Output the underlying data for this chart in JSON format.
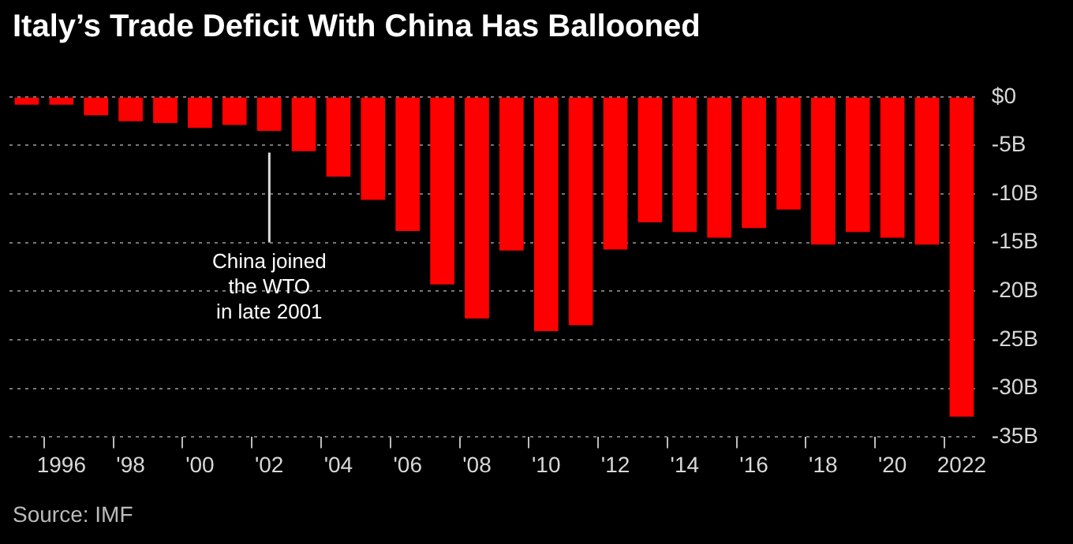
{
  "chart_data": {
    "type": "bar",
    "title": "Italy’s Trade Deficit With China Has Ballooned",
    "categories": [
      null,
      "1996",
      null,
      "'98",
      null,
      "'00",
      null,
      "'02",
      null,
      "'04",
      null,
      "'06",
      null,
      "'08",
      null,
      "'10",
      null,
      "'12",
      null,
      "'14",
      null,
      "'16",
      null,
      "'18",
      null,
      "'20",
      null,
      "2022"
    ],
    "values": [
      -0.8,
      -0.8,
      -1.9,
      -2.5,
      -2.7,
      -3.2,
      -2.9,
      -3.5,
      -5.6,
      -8.2,
      -10.6,
      -13.8,
      -19.3,
      -22.8,
      -15.8,
      -24.1,
      -23.5,
      -15.7,
      -12.9,
      -13.9,
      -14.5,
      -13.5,
      -11.6,
      -15.2,
      -13.9,
      -14.5,
      -15.2,
      -32.9
    ],
    "color": "#ff0000",
    "ylim": [
      -35,
      0
    ],
    "yticks": [
      {
        "value": 0,
        "label": "$0"
      },
      {
        "value": -5,
        "label": "-5B"
      },
      {
        "value": -10,
        "label": "-10B"
      },
      {
        "value": -15,
        "label": "-15B"
      },
      {
        "value": -20,
        "label": "-20B"
      },
      {
        "value": -25,
        "label": "-25B"
      },
      {
        "value": -30,
        "label": "-30B"
      },
      {
        "value": -35,
        "label": "-35B"
      }
    ],
    "grid": "y",
    "annotations": [
      "China joined\nthe WTO\nin late 2001",
      "Source: IMF"
    ]
  }
}
